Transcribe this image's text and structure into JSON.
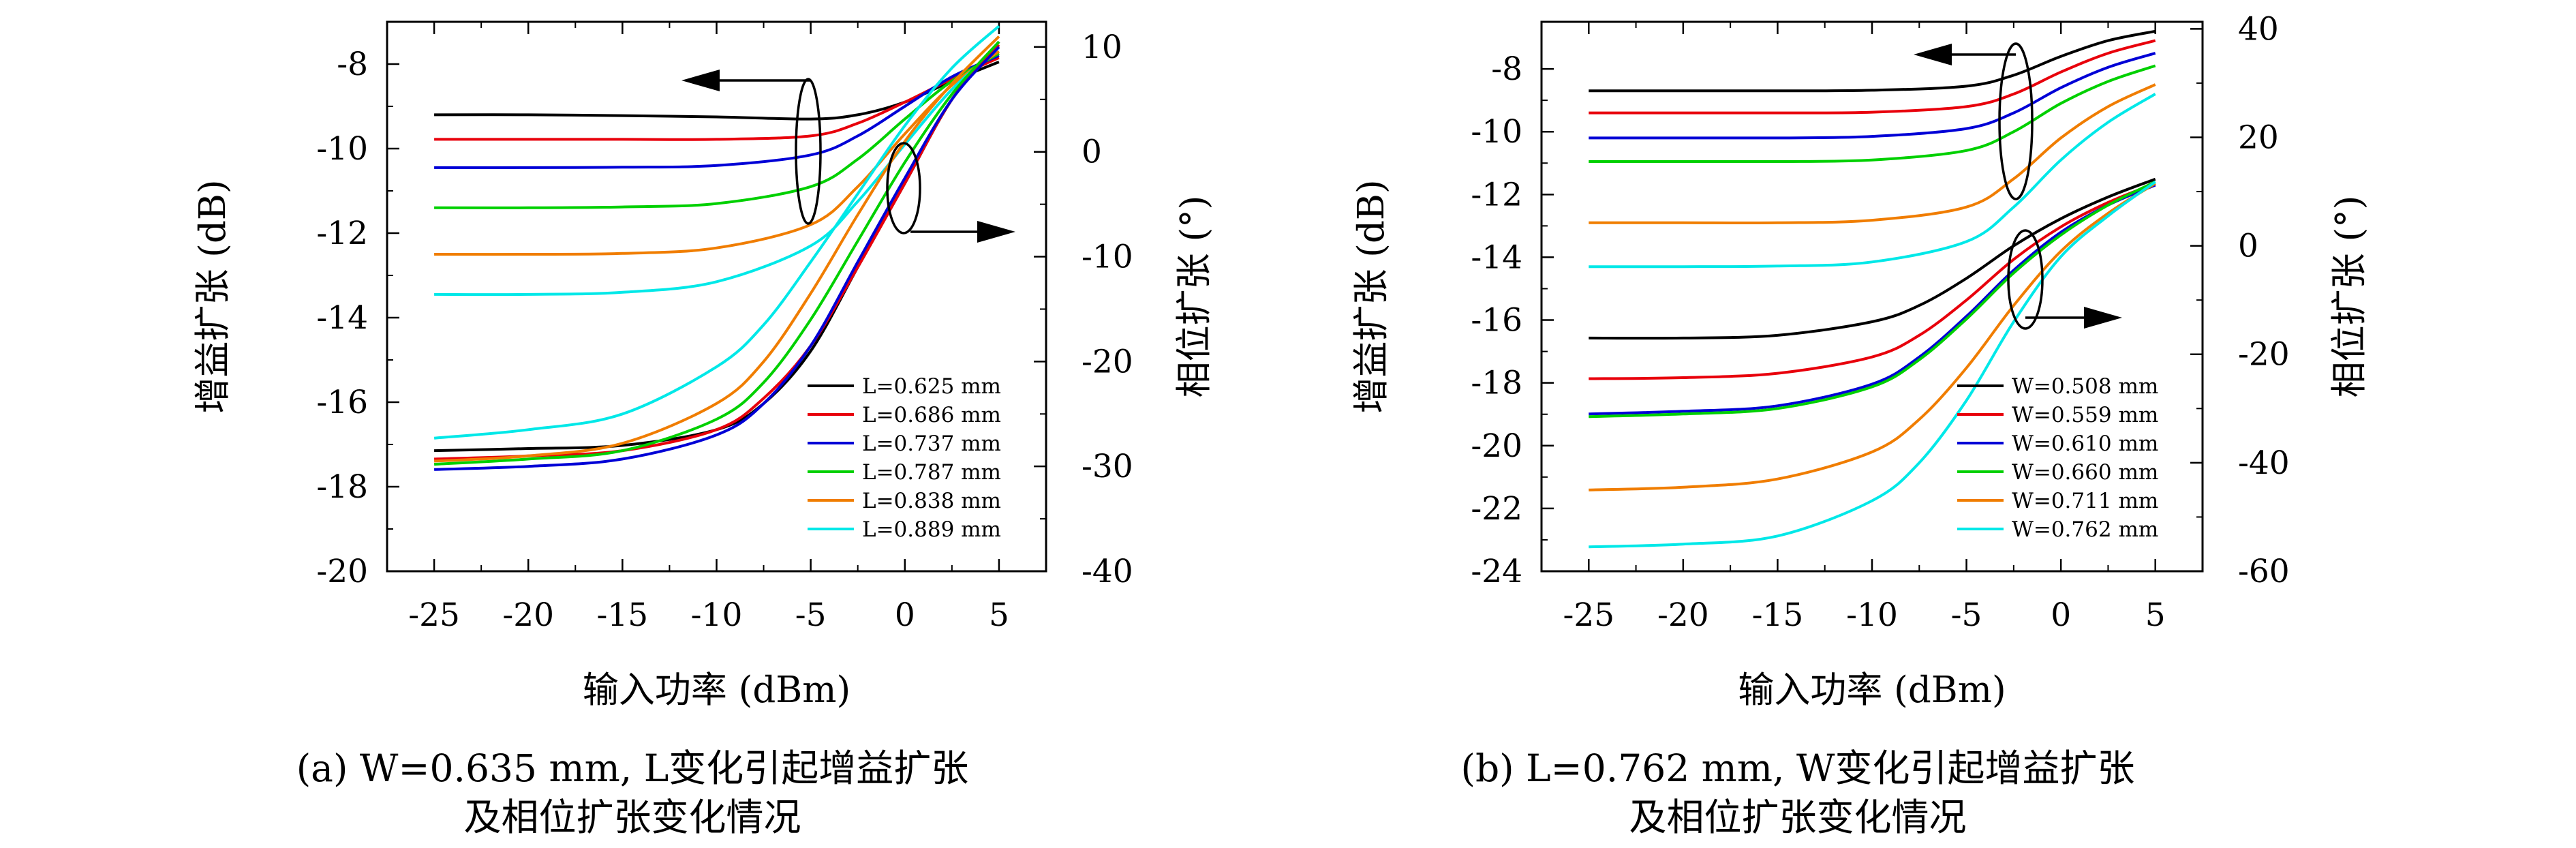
{
  "colors": {
    "black": "#000000",
    "red": "#e8000b",
    "blue": "#0000d6",
    "green": "#00d000",
    "orange": "#f07d00",
    "cyan": "#00e8e8"
  },
  "chart_data": [
    {
      "type": "line",
      "xlabel": "输入功率 (dBm)",
      "ylabel": "增益扩张 (dB)",
      "y2label": "相位扩张 (°)",
      "xlim": [
        -27.5,
        7.5
      ],
      "ylim": [
        -20,
        -7
      ],
      "y2lim": [
        -40,
        12.4
      ],
      "x_ticks": [
        -25,
        -20,
        -15,
        -10,
        -5,
        0,
        5
      ],
      "x_tick_labels": [
        "-25",
        "-20",
        "-15",
        "-10",
        "-5",
        "0",
        "5"
      ],
      "y_ticks": [
        -8,
        -10,
        -12,
        -14,
        -16,
        -18,
        -20
      ],
      "y_tick_labels": [
        "-8",
        "-10",
        "-12",
        "-14",
        "-16",
        "-18",
        "-20"
      ],
      "y2_ticks": [
        10,
        0,
        -10,
        -20,
        -30,
        -40
      ],
      "y2_tick_labels": [
        "10",
        "0",
        "-10",
        "-20",
        "-30",
        "-40"
      ],
      "grid": false,
      "legend_position": "bottom-right",
      "caption_line1": "(a) W=0.635 mm, L变化引起增益扩张",
      "caption_line2": "及相位扩张变化情况",
      "gain_series": [
        {
          "name": "L=0.625 mm",
          "color": "#000000",
          "x": [
            -25,
            -20,
            -15,
            -10,
            -5,
            -2.5,
            0,
            2.5,
            5
          ],
          "y": [
            -9.2,
            -9.2,
            -9.22,
            -9.25,
            -9.3,
            -9.2,
            -8.9,
            -8.4,
            -7.95
          ]
        },
        {
          "name": "L=0.686 mm",
          "color": "#e8000b",
          "x": [
            -25,
            -20,
            -15,
            -10,
            -5,
            -2.5,
            0,
            2.5,
            5
          ],
          "y": [
            -9.78,
            -9.78,
            -9.78,
            -9.78,
            -9.7,
            -9.4,
            -8.9,
            -8.35,
            -7.85
          ]
        },
        {
          "name": "L=0.737 mm",
          "color": "#0000d6",
          "x": [
            -25,
            -20,
            -15,
            -10,
            -5,
            -2.5,
            0,
            2.5,
            5
          ],
          "y": [
            -10.45,
            -10.45,
            -10.44,
            -10.4,
            -10.15,
            -9.7,
            -9.0,
            -8.3,
            -7.8
          ]
        },
        {
          "name": "L=0.787 mm",
          "color": "#00d000",
          "x": [
            -25,
            -20,
            -15,
            -10,
            -5,
            -2.5,
            0,
            2.5,
            5
          ],
          "y": [
            -11.4,
            -11.4,
            -11.38,
            -11.3,
            -10.9,
            -10.25,
            -9.3,
            -8.4,
            -7.75
          ]
        },
        {
          "name": "L=0.838 mm",
          "color": "#f07d00",
          "x": [
            -25,
            -20,
            -15,
            -10,
            -5,
            -2.5,
            0,
            2.5,
            5
          ],
          "y": [
            -12.5,
            -12.5,
            -12.48,
            -12.35,
            -11.8,
            -10.9,
            -9.65,
            -8.5,
            -7.7
          ]
        },
        {
          "name": "L=0.889 mm",
          "color": "#00e8e8",
          "x": [
            -25,
            -20,
            -15,
            -10,
            -5,
            -2.5,
            0,
            2.5,
            5
          ],
          "y": [
            -13.45,
            -13.45,
            -13.4,
            -13.15,
            -12.3,
            -11.25,
            -9.9,
            -8.6,
            -7.6
          ]
        }
      ],
      "phase_series": [
        {
          "name": "L=0.625 mm",
          "color": "#000000",
          "x": [
            -25,
            -20,
            -15,
            -10,
            -7.5,
            -5,
            -2.5,
            0,
            2.5,
            5
          ],
          "y": [
            -28.5,
            -28.3,
            -28,
            -26.5,
            -24,
            -19,
            -11,
            -3,
            5,
            10.5
          ]
        },
        {
          "name": "L=0.686 mm",
          "color": "#e8000b",
          "x": [
            -25,
            -20,
            -15,
            -10,
            -7.5,
            -5,
            -2.5,
            0,
            2.5,
            5
          ],
          "y": [
            -29.3,
            -29,
            -28.5,
            -26.5,
            -23.5,
            -18.5,
            -11,
            -3,
            5,
            10.2
          ]
        },
        {
          "name": "L=0.737 mm",
          "color": "#0000d6",
          "x": [
            -25,
            -20,
            -15,
            -10,
            -7.5,
            -5,
            -2.5,
            0,
            2.5,
            5
          ],
          "y": [
            -30.3,
            -30,
            -29.3,
            -27,
            -24,
            -18.5,
            -10.5,
            -2.5,
            5,
            10
          ]
        },
        {
          "name": "L=0.787 mm",
          "color": "#00d000",
          "x": [
            -25,
            -20,
            -15,
            -10,
            -7.5,
            -5,
            -2.5,
            0,
            2.5,
            5
          ],
          "y": [
            -29.8,
            -29.3,
            -28.5,
            -25.5,
            -22,
            -16,
            -8.5,
            -1,
            5.5,
            10.5
          ]
        },
        {
          "name": "L=0.838 mm",
          "color": "#f07d00",
          "x": [
            -25,
            -20,
            -15,
            -10,
            -7.5,
            -5,
            -2.5,
            0,
            2.5,
            5
          ],
          "y": [
            -29.5,
            -29,
            -27.8,
            -24,
            -20,
            -13.5,
            -6,
            1,
            6.5,
            11
          ]
        },
        {
          "name": "L=0.889 mm",
          "color": "#00e8e8",
          "x": [
            -25,
            -20,
            -15,
            -10,
            -7.5,
            -5,
            -2.5,
            0,
            2.5,
            5
          ],
          "y": [
            -27.3,
            -26.5,
            -25,
            -20.5,
            -16.5,
            -10.5,
            -4,
            2.5,
            8,
            12
          ]
        }
      ],
      "gain_arrow": "left",
      "phase_arrow": "right"
    },
    {
      "type": "line",
      "xlabel": "输入功率 (dBm)",
      "ylabel": "增益扩张 (dB)",
      "y2label": "相位扩张 (°)",
      "xlim": [
        -27.5,
        7.5
      ],
      "ylim": [
        -24,
        -6.5
      ],
      "y2lim": [
        -60,
        41.3
      ],
      "x_ticks": [
        -25,
        -20,
        -15,
        -10,
        -5,
        0,
        5
      ],
      "x_tick_labels": [
        "-25",
        "-20",
        "-15",
        "-10",
        "-5",
        "0",
        "5"
      ],
      "y_ticks": [
        -8,
        -10,
        -12,
        -14,
        -16,
        -18,
        -20,
        -22,
        -24
      ],
      "y_tick_labels": [
        "-8",
        "-10",
        "-12",
        "-14",
        "-16",
        "-18",
        "-20",
        "-22",
        "-24"
      ],
      "y2_ticks": [
        40,
        20,
        0,
        -20,
        -40,
        -60
      ],
      "y2_tick_labels": [
        "40",
        "20",
        "0",
        "-20",
        "-40",
        "-60"
      ],
      "grid": false,
      "legend_position": "bottom-right",
      "caption_line1": "(b) L=0.762 mm, W变化引起增益扩张",
      "caption_line2": "及相位扩张变化情况",
      "gain_series": [
        {
          "name": "W=0.508 mm",
          "color": "#000000",
          "x": [
            -25,
            -20,
            -15,
            -10,
            -5,
            -2.5,
            0,
            2.5,
            5
          ],
          "y": [
            -8.7,
            -8.7,
            -8.7,
            -8.68,
            -8.55,
            -8.2,
            -7.6,
            -7.1,
            -6.8
          ]
        },
        {
          "name": "W=0.559 mm",
          "color": "#e8000b",
          "x": [
            -25,
            -20,
            -15,
            -10,
            -5,
            -2.5,
            0,
            2.5,
            5
          ],
          "y": [
            -9.4,
            -9.4,
            -9.4,
            -9.38,
            -9.2,
            -8.8,
            -8.1,
            -7.5,
            -7.1
          ]
        },
        {
          "name": "W=0.610 mm",
          "color": "#0000d6",
          "x": [
            -25,
            -20,
            -15,
            -10,
            -5,
            -2.5,
            0,
            2.5,
            5
          ],
          "y": [
            -10.2,
            -10.2,
            -10.2,
            -10.15,
            -9.9,
            -9.4,
            -8.6,
            -7.95,
            -7.5
          ]
        },
        {
          "name": "W=0.660 mm",
          "color": "#00d000",
          "x": [
            -25,
            -20,
            -15,
            -10,
            -5,
            -2.5,
            0,
            2.5,
            5
          ],
          "y": [
            -10.95,
            -10.95,
            -10.95,
            -10.9,
            -10.6,
            -10.0,
            -9.1,
            -8.4,
            -7.9
          ]
        },
        {
          "name": "W=0.711 mm",
          "color": "#f07d00",
          "x": [
            -25,
            -20,
            -15,
            -10,
            -5,
            -2.5,
            0,
            2.5,
            5
          ],
          "y": [
            -12.9,
            -12.9,
            -12.9,
            -12.82,
            -12.4,
            -11.5,
            -10.2,
            -9.2,
            -8.5
          ]
        },
        {
          "name": "W=0.762 mm",
          "color": "#00e8e8",
          "x": [
            -25,
            -20,
            -15,
            -10,
            -5,
            -2.5,
            0,
            2.5,
            5
          ],
          "y": [
            -14.3,
            -14.3,
            -14.28,
            -14.15,
            -13.5,
            -12.4,
            -10.9,
            -9.7,
            -8.8
          ]
        }
      ],
      "phase_series": [
        {
          "name": "W=0.508 mm",
          "color": "#000000",
          "x": [
            -25,
            -20,
            -15,
            -10,
            -7.5,
            -5,
            -2.5,
            0,
            2.5,
            5
          ],
          "y": [
            -17,
            -17,
            -16.5,
            -14,
            -11,
            -6,
            0,
            5,
            9,
            12.3
          ]
        },
        {
          "name": "W=0.559 mm",
          "color": "#e8000b",
          "x": [
            -25,
            -20,
            -15,
            -10,
            -7.5,
            -5,
            -2.5,
            0,
            2.5,
            5
          ],
          "y": [
            -24.5,
            -24.3,
            -23.5,
            -20.5,
            -16.5,
            -10,
            -2.5,
            3.5,
            8,
            11.5
          ]
        },
        {
          "name": "W=0.610 mm",
          "color": "#0000d6",
          "x": [
            -25,
            -20,
            -15,
            -10,
            -7.5,
            -5,
            -2.5,
            0,
            2.5,
            5
          ],
          "y": [
            -31,
            -30.5,
            -29.5,
            -25.5,
            -20.5,
            -13,
            -4.5,
            2.5,
            7.5,
            11.2
          ]
        },
        {
          "name": "W=0.660 mm",
          "color": "#00d000",
          "x": [
            -25,
            -20,
            -15,
            -10,
            -7.5,
            -5,
            -2.5,
            0,
            2.5,
            5
          ],
          "y": [
            -31.5,
            -31,
            -30,
            -26,
            -21,
            -13.5,
            -5,
            2,
            7.5,
            11.8
          ]
        },
        {
          "name": "W=0.711 mm",
          "color": "#f07d00",
          "x": [
            -25,
            -20,
            -15,
            -10,
            -7.5,
            -5,
            -2.5,
            0,
            2.5,
            5
          ],
          "y": [
            -45,
            -44.5,
            -43,
            -38,
            -32,
            -22.5,
            -11,
            -1,
            6,
            11.5
          ]
        },
        {
          "name": "W=0.762 mm",
          "color": "#00e8e8",
          "x": [
            -25,
            -20,
            -15,
            -10,
            -7.5,
            -5,
            -2.5,
            0,
            2.5,
            5
          ],
          "y": [
            -55.5,
            -55,
            -53.5,
            -47,
            -40,
            -28.5,
            -14,
            -2,
            5.5,
            11.8
          ]
        }
      ],
      "gain_arrow": "left",
      "phase_arrow": "right"
    }
  ]
}
